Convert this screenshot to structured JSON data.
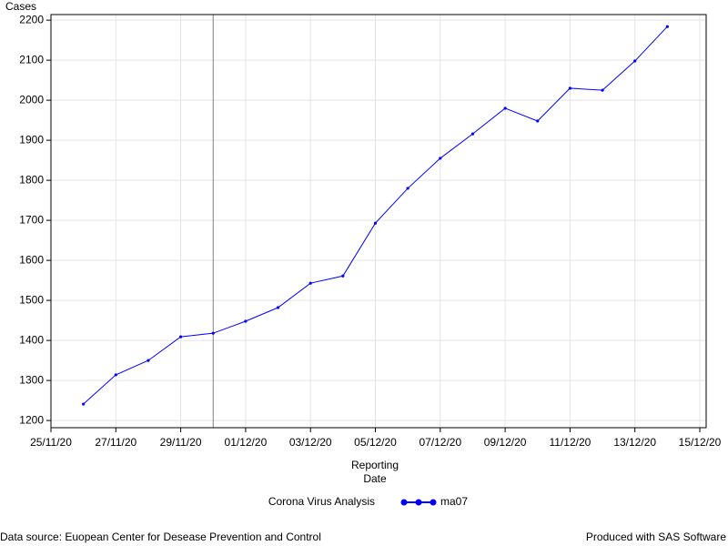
{
  "chart_data": {
    "type": "line",
    "ylabel": "Cases",
    "xlabel": "Reporting Date",
    "legend_title": "Corona Virus Analysis",
    "footnote_left": "Data source: Euopean Center for Desease Prevention and Control",
    "footnote_right": "Produced with SAS Software",
    "x": [
      "26/11/20",
      "27/11/20",
      "28/11/20",
      "29/11/20",
      "30/11/20",
      "01/12/20",
      "02/12/20",
      "03/12/20",
      "04/12/20",
      "05/12/20",
      "06/12/20",
      "07/12/20",
      "08/12/20",
      "09/12/20",
      "10/12/20",
      "11/12/20",
      "12/12/20",
      "13/12/20",
      "14/12/20"
    ],
    "series": [
      {
        "name": "ma07",
        "color": "#0000ff",
        "values": [
          1241,
          1314,
          1350,
          1409,
          1418,
          1448,
          1482,
          1543,
          1561,
          1693,
          1780,
          1855,
          1916,
          1980,
          1948,
          2030,
          2025,
          2098,
          2184
        ]
      }
    ],
    "reference_line_x": "30/11/20",
    "xlim": [
      "25/11/20",
      "15/12/20"
    ],
    "xticks": [
      "25/11/20",
      "27/11/20",
      "29/11/20",
      "01/12/20",
      "03/12/20",
      "05/12/20",
      "07/12/20",
      "09/12/20",
      "11/12/20",
      "13/12/20",
      "15/12/20"
    ],
    "ylim": [
      1182,
      2214
    ],
    "yticks": [
      1200,
      1300,
      1400,
      1500,
      1600,
      1700,
      1800,
      1900,
      2000,
      2100,
      2200
    ],
    "grid": true
  }
}
